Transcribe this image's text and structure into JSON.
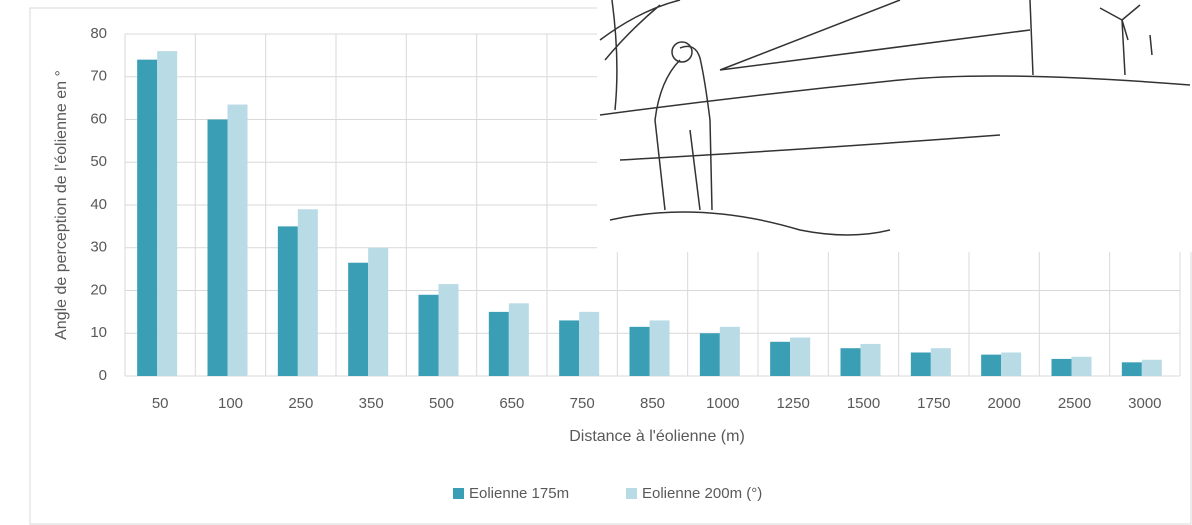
{
  "chart_data": {
    "type": "bar",
    "x_label": "Distance à l'éolienne (m)",
    "y_label": "Angle de perception de l’éolienne en °",
    "categories": [
      "50",
      "100",
      "250",
      "350",
      "500",
      "650",
      "750",
      "850",
      "1000",
      "1250",
      "1500",
      "1750",
      "2000",
      "2500",
      "3000"
    ],
    "series": [
      {
        "name": "Eolienne 175m",
        "color": "#3a9fb5",
        "values": [
          74,
          60,
          35,
          26.5,
          19,
          15,
          13,
          11.5,
          10,
          8,
          6.5,
          5.5,
          5,
          4,
          3.2
        ]
      },
      {
        "name": "Eolienne 200m  (°)",
        "color": "#b8dbe5",
        "values": [
          76,
          63.5,
          39,
          30,
          21.5,
          17,
          15,
          13,
          11.5,
          9,
          7.5,
          6.5,
          5.5,
          4.5,
          3.8
        ]
      }
    ],
    "ylim": [
      0,
      80
    ],
    "yticks": [
      0,
      10,
      20,
      30,
      40,
      50,
      60,
      70,
      80
    ],
    "grid": true
  }
}
